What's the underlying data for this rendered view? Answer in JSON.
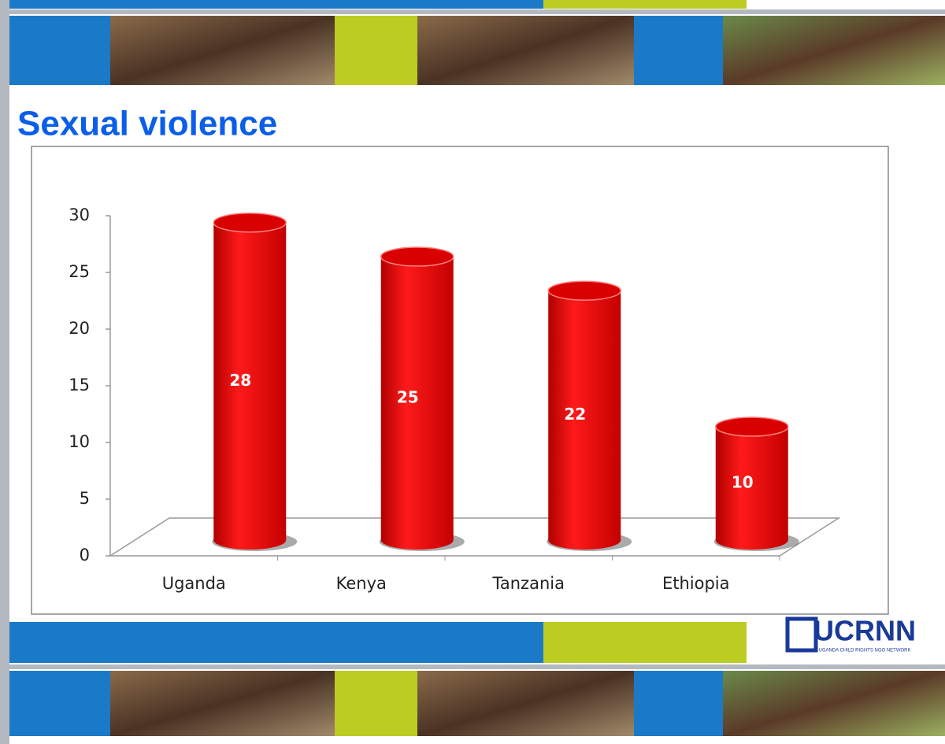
{
  "chart_data": {
    "type": "bar",
    "title": "Sexual violence",
    "categories": [
      "Uganda",
      "Kenya",
      "Tanzania",
      "Ethiopia"
    ],
    "values": [
      28,
      25,
      22,
      10
    ],
    "color": "#e60000",
    "ylim": [
      0,
      30
    ],
    "yticks": [
      0,
      5,
      10,
      15,
      20,
      25,
      30
    ],
    "grid": false
  },
  "logo": {
    "name": "UCRNN",
    "tagline": "UGANDA CHILD RIGHTS NGO NETWORK"
  }
}
